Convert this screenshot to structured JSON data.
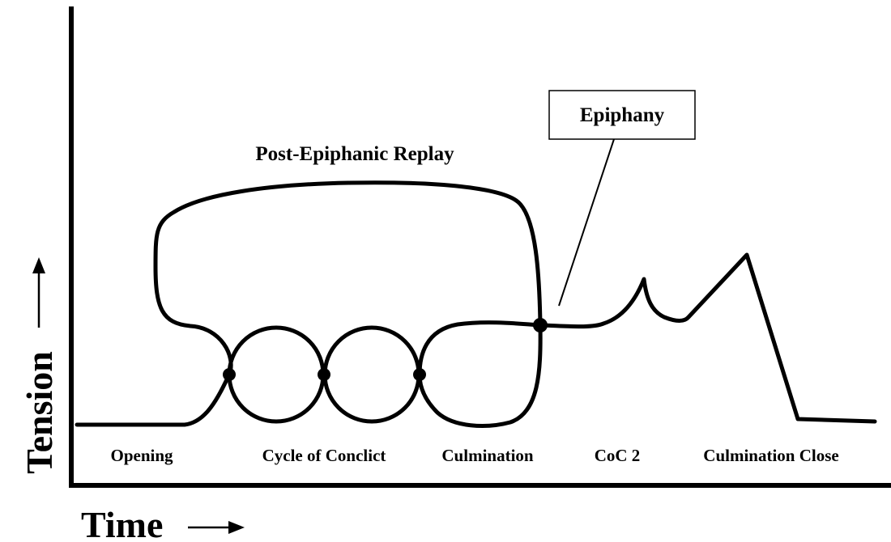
{
  "axes": {
    "y_label": "Tension",
    "x_label": "Time"
  },
  "annotations": {
    "replay": "Post-Epiphanic Replay",
    "epiphany": "Epiphany"
  },
  "phases": [
    "Opening",
    "Cycle of Conclict",
    "Culmination",
    "CoC 2",
    "Culmination Close"
  ]
}
